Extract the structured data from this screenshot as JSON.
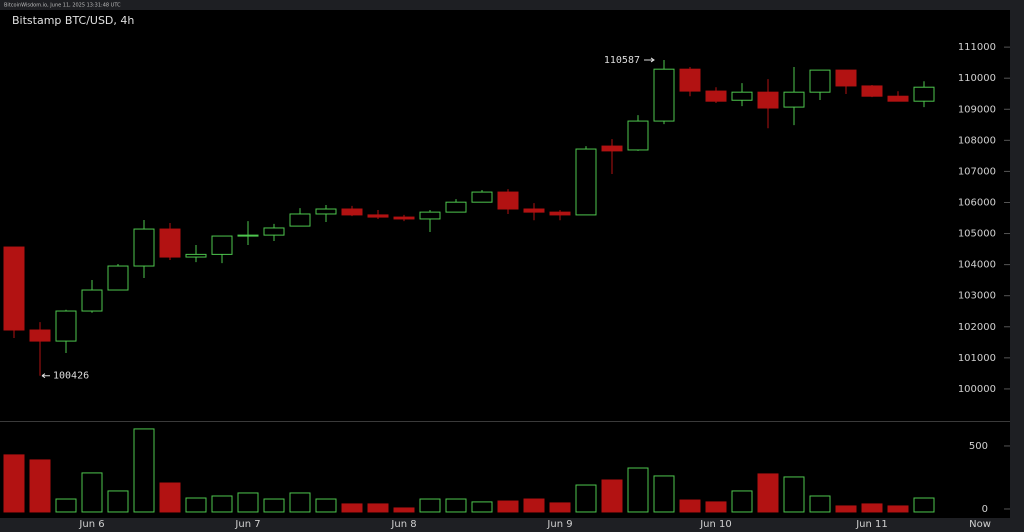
{
  "chart_data": {
    "type": "candlestick",
    "source": "BitcoinWisdom.io, June 11, 2025 13:31:48 UTC",
    "title": "Bitstamp BTC/USD, 4h",
    "categories": [
      null,
      null,
      null,
      "Jun 6",
      null,
      null,
      null,
      null,
      null,
      "Jun 7",
      null,
      null,
      null,
      null,
      null,
      "Jun 8",
      null,
      null,
      null,
      null,
      null,
      "Jun 9",
      null,
      null,
      null,
      null,
      null,
      "Jun 10",
      null,
      null,
      null,
      null,
      null,
      "Jun 11",
      null,
      null
    ],
    "now_label": "Now",
    "open": [
      104566,
      101896,
      101540,
      102507,
      103183,
      103955,
      105145,
      104244,
      104330,
      104920,
      104950,
      105240,
      105630,
      105790,
      105600,
      105530,
      105470,
      105690,
      106010,
      106335,
      105790,
      105690,
      105600,
      107815,
      107690,
      108620,
      110290,
      109585,
      109290,
      109550,
      109070,
      109550,
      110260,
      109750,
      109420,
      109260
    ],
    "high": [
      104566,
      102150,
      102550,
      103505,
      104020,
      105435,
      105340,
      104630,
      104920,
      105400,
      105310,
      105820,
      105920,
      105890,
      105760,
      105600,
      105760,
      106110,
      106400,
      106430,
      105980,
      105760,
      107815,
      108040,
      108810,
      110587,
      110360,
      109710,
      109840,
      109970,
      110360,
      110260,
      110260,
      109780,
      109580,
      109900
    ],
    "low": [
      101640,
      100426,
      101156,
      102450,
      103183,
      103570,
      104150,
      104080,
      104050,
      104630,
      104760,
      105240,
      105370,
      105560,
      105470,
      105400,
      105050,
      105690,
      106010,
      105630,
      105430,
      105430,
      105600,
      106915,
      107660,
      108520,
      109420,
      109200,
      109100,
      108390,
      108490,
      109300,
      109490,
      109390,
      109260,
      109070
    ],
    "close": [
      101896,
      101540,
      102507,
      103183,
      103955,
      105145,
      104244,
      104330,
      104920,
      104950,
      105180,
      105630,
      105790,
      105600,
      105530,
      105470,
      105690,
      106010,
      106335,
      105790,
      105690,
      105600,
      107720,
      107660,
      108620,
      110290,
      109585,
      109260,
      109550,
      109040,
      109550,
      110260,
      109750,
      109420,
      109260,
      109710
    ],
    "volume": [
      429,
      389,
      79,
      286,
      143,
      635,
      206,
      87,
      103,
      127,
      79,
      127,
      79,
      40,
      40,
      8,
      79,
      79,
      56,
      63,
      79,
      48,
      190,
      230,
      325,
      262,
      71,
      56,
      143,
      278,
      254,
      103,
      24,
      40,
      24,
      87
    ],
    "up_color": "#4ec64e",
    "down_color": "#b21212",
    "ylim": [
      99000,
      112130
    ],
    "yticks": [
      100000,
      101000,
      102000,
      103000,
      104000,
      105000,
      106000,
      107000,
      108000,
      109000,
      110000,
      111000
    ],
    "volume_ylim": [
      -24,
      690
    ],
    "volume_yticks": [
      0,
      500
    ],
    "annotate_high_index": 25,
    "annotate_low_index": 1
  }
}
